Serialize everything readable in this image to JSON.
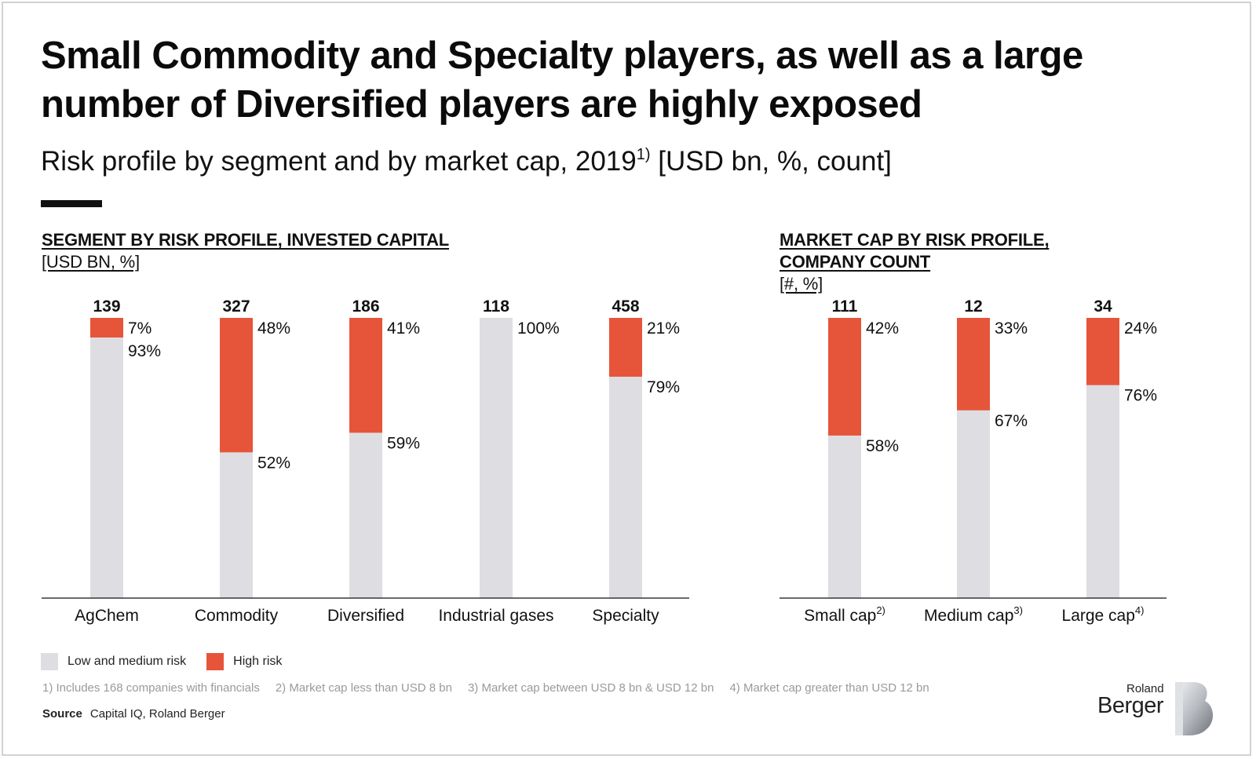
{
  "header": {
    "title": "Small Commodity and Specialty players, as well as a large number of Diversified players are highly exposed",
    "subtitle": "Risk profile by segment and by market cap, 2019",
    "subtitle_sup": "1)",
    "subtitle_units": "[USD bn, %, count]"
  },
  "colors": {
    "high_risk": "#E6553A",
    "low_medium_risk": "#DEDEE2",
    "text": "#111111"
  },
  "chart_data": [
    {
      "type": "bar",
      "stacked": "100%",
      "title": "SEGMENT BY RISK PROFILE, INVESTED CAPITAL",
      "unit": "[USD BN, %]",
      "categories": [
        "AgChem",
        "Commodity",
        "Diversified",
        "Industrial gases",
        "Specialty"
      ],
      "category_sups": [
        "",
        "",
        "",
        "",
        ""
      ],
      "totals": [
        "139",
        "327",
        "186",
        "118",
        "458"
      ],
      "series": [
        {
          "name": "Low and medium risk",
          "values": [
            93,
            52,
            59,
            100,
            79
          ],
          "labels": [
            "93%",
            "52%",
            "59%",
            "100%",
            "79%"
          ]
        },
        {
          "name": "High risk",
          "values": [
            7,
            48,
            41,
            0,
            21
          ],
          "labels": [
            "7%",
            "48%",
            "41%",
            "",
            "21%"
          ]
        }
      ],
      "ylim": [
        0,
        100
      ]
    },
    {
      "type": "bar",
      "stacked": "100%",
      "title": "MARKET CAP BY RISK PROFILE,",
      "title_line2": "COMPANY COUNT",
      "unit": "[#, %]",
      "categories": [
        "Small cap",
        "Medium cap",
        "Large cap"
      ],
      "category_sups": [
        "2)",
        "3)",
        "4)"
      ],
      "totals": [
        "111",
        "12",
        "34"
      ],
      "series": [
        {
          "name": "Low and medium risk",
          "values": [
            58,
            67,
            76
          ],
          "labels": [
            "58%",
            "67%",
            "76%"
          ]
        },
        {
          "name": "High risk",
          "values": [
            42,
            33,
            24
          ],
          "labels": [
            "42%",
            "33%",
            "24%"
          ]
        }
      ],
      "ylim": [
        0,
        100
      ]
    }
  ],
  "legend": {
    "low_medium": "Low and medium risk",
    "high": "High risk"
  },
  "footnotes": [
    "1) Includes 168 companies with financials",
    "2) Market cap less than USD 8 bn",
    "3) Market cap between USD 8 bn & USD 12 bn",
    "4) Market cap greater than USD 12 bn"
  ],
  "source": {
    "label": "Source",
    "text": "Capital IQ, Roland Berger"
  },
  "logo": {
    "line1": "Roland",
    "line2": "Berger"
  }
}
